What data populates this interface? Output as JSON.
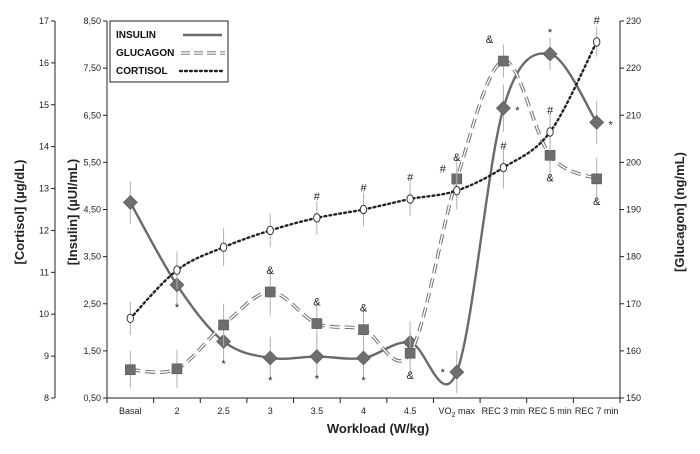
{
  "chart_data": {
    "type": "line",
    "title": "",
    "xlabel": "Workload (W/kg)",
    "categories": [
      "Basal",
      "2",
      "2.5",
      "3",
      "3.5",
      "4",
      "4.5",
      "VO2 max",
      "REC 3 min",
      "REC 5 min",
      "REC 7 min"
    ],
    "x_tick_labels": [
      {
        "main": "Basal",
        "sub": ""
      },
      {
        "main": "2",
        "sub": ""
      },
      {
        "main": "2.5",
        "sub": ""
      },
      {
        "main": "3",
        "sub": ""
      },
      {
        "main": "3.5",
        "sub": ""
      },
      {
        "main": "4",
        "sub": ""
      },
      {
        "main": "4.5",
        "sub": ""
      },
      {
        "main": "VO",
        "sub": "2",
        "after": " max"
      },
      {
        "main": "REC 3 min",
        "sub": ""
      },
      {
        "main": "REC 5 min",
        "sub": ""
      },
      {
        "main": "REC 7 min",
        "sub": ""
      }
    ],
    "axes": {
      "cortisol": {
        "label": "[Cortisol] (µg/dL)",
        "min": 8,
        "max": 17,
        "ticks": [
          "8",
          "9",
          "10",
          "11",
          "12",
          "13",
          "14",
          "15",
          "16",
          "17"
        ]
      },
      "insulin": {
        "label": "[Insulin] (µUI/mL)",
        "min": 0.5,
        "max": 8.5,
        "ticks": [
          "0,50",
          "1,50",
          "2,50",
          "3,50",
          "4,50",
          "5,50",
          "6,50",
          "7,50",
          "8,50"
        ]
      },
      "glucagon": {
        "label": "[Glucagon] (ng/mL)",
        "min": 150,
        "max": 230,
        "ticks": [
          "150",
          "160",
          "170",
          "180",
          "190",
          "200",
          "210",
          "220",
          "230"
        ]
      }
    },
    "legend": {
      "position": "top-left",
      "entries": [
        {
          "name": "INSULIN",
          "style": "solid"
        },
        {
          "name": "GLUCAGON",
          "style": "dashed"
        },
        {
          "name": "CORTISOL",
          "style": "dotted"
        }
      ]
    },
    "series": [
      {
        "name": "INSULIN",
        "axis": "insulin",
        "marker": "diamond",
        "values": [
          4.65,
          2.9,
          1.7,
          1.35,
          1.38,
          1.35,
          1.68,
          1.05,
          6.65,
          7.8,
          6.35
        ],
        "errors": [
          0.45,
          0.45,
          0.4,
          0.45,
          0.45,
          0.4,
          0.45,
          0.45,
          0.5,
          0.35,
          0.45
        ]
      },
      {
        "name": "GLUCAGON",
        "axis": "glucagon",
        "marker": "square",
        "values": [
          156,
          156.2,
          165.5,
          172.5,
          165.8,
          164.5,
          159.5,
          196.5,
          221.5,
          201.5,
          196.5
        ],
        "errors": [
          4,
          4,
          4.5,
          5,
          4.5,
          4.5,
          4.5,
          4.5,
          3.5,
          5,
          4.5
        ]
      },
      {
        "name": "CORTISOL",
        "axis": "cortisol",
        "marker": "circle",
        "values": [
          9.9,
          11.05,
          11.6,
          12,
          12.3,
          12.5,
          12.75,
          12.95,
          13.5,
          14.35,
          16.5
        ],
        "errors": [
          0.4,
          0.45,
          0.45,
          0.4,
          0.4,
          0.4,
          0.4,
          0.45,
          0.5,
          0.45,
          0.35
        ]
      }
    ],
    "annotations": [
      {
        "symbol": "*",
        "series": "INSULIN",
        "index": 1,
        "pos": "below"
      },
      {
        "symbol": "*",
        "series": "INSULIN",
        "index": 2,
        "pos": "below"
      },
      {
        "symbol": "*",
        "series": "INSULIN",
        "index": 3,
        "pos": "below"
      },
      {
        "symbol": "*",
        "series": "INSULIN",
        "index": 4,
        "pos": "below"
      },
      {
        "symbol": "*",
        "series": "INSULIN",
        "index": 5,
        "pos": "below"
      },
      {
        "symbol": "*",
        "series": "INSULIN",
        "index": 7,
        "pos": "left"
      },
      {
        "symbol": "*",
        "series": "INSULIN",
        "index": 8,
        "pos": "right"
      },
      {
        "symbol": "*",
        "series": "INSULIN",
        "index": 9,
        "pos": "above"
      },
      {
        "symbol": "*",
        "series": "INSULIN",
        "index": 10,
        "pos": "right"
      },
      {
        "symbol": "&",
        "series": "GLUCAGON",
        "index": 3,
        "pos": "above"
      },
      {
        "symbol": "&",
        "series": "GLUCAGON",
        "index": 4,
        "pos": "above"
      },
      {
        "symbol": "&",
        "series": "GLUCAGON",
        "index": 5,
        "pos": "above"
      },
      {
        "symbol": "&",
        "series": "GLUCAGON",
        "index": 6,
        "pos": "below"
      },
      {
        "symbol": "&",
        "series": "GLUCAGON",
        "index": 7,
        "pos": "above"
      },
      {
        "symbol": "&",
        "series": "GLUCAGON",
        "index": 8,
        "pos": "above-left"
      },
      {
        "symbol": "&",
        "series": "GLUCAGON",
        "index": 9,
        "pos": "below"
      },
      {
        "symbol": "&",
        "series": "GLUCAGON",
        "index": 10,
        "pos": "below"
      },
      {
        "symbol": "#",
        "series": "CORTISOL",
        "index": 4,
        "pos": "above"
      },
      {
        "symbol": "#",
        "series": "CORTISOL",
        "index": 5,
        "pos": "above"
      },
      {
        "symbol": "#",
        "series": "CORTISOL",
        "index": 6,
        "pos": "above"
      },
      {
        "symbol": "#",
        "series": "CORTISOL",
        "index": 7,
        "pos": "above-left"
      },
      {
        "symbol": "#",
        "series": "CORTISOL",
        "index": 8,
        "pos": "above"
      },
      {
        "symbol": "#",
        "series": "CORTISOL",
        "index": 9,
        "pos": "above"
      },
      {
        "symbol": "#",
        "series": "CORTISOL",
        "index": 10,
        "pos": "above"
      }
    ],
    "colors": {
      "marker": "#6e6e6e",
      "line": "#6a6a6a",
      "text": "#222222",
      "error_bar": "#b0b0b0"
    },
    "grid": false
  }
}
